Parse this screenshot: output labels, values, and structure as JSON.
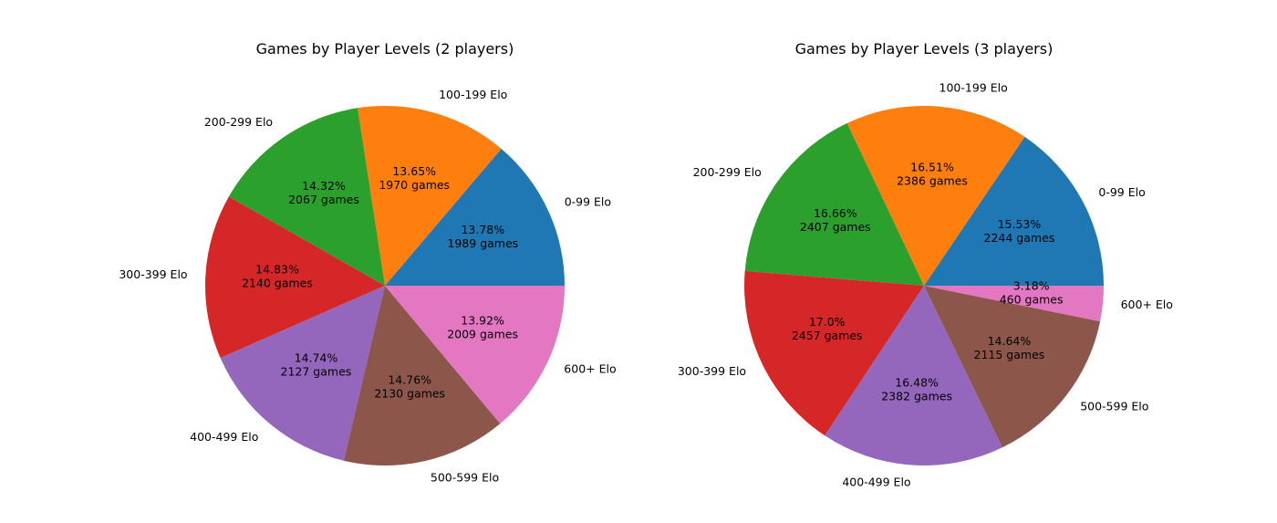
{
  "chart_data": [
    {
      "type": "pie",
      "title": "Games by Player Levels (2 players)",
      "start_angle": 0,
      "direction": "counterclockwise",
      "slices": [
        {
          "label": "0-99 Elo",
          "pct": "13.78%",
          "games": "1989 games",
          "value": 1989,
          "color": "#1f77b4"
        },
        {
          "label": "100-199 Elo",
          "pct": "13.65%",
          "games": "1970 games",
          "value": 1970,
          "color": "#ff7f0e"
        },
        {
          "label": "200-299 Elo",
          "pct": "14.32%",
          "games": "2067 games",
          "value": 2067,
          "color": "#2ca02c"
        },
        {
          "label": "300-399 Elo",
          "pct": "14.83%",
          "games": "2140 games",
          "value": 2140,
          "color": "#d62728"
        },
        {
          "label": "400-499 Elo",
          "pct": "14.74%",
          "games": "2127 games",
          "value": 2127,
          "color": "#9467bd"
        },
        {
          "label": "500-599 Elo",
          "pct": "14.76%",
          "games": "2130 games",
          "value": 2130,
          "color": "#8c564b"
        },
        {
          "label": "600+ Elo",
          "pct": "13.92%",
          "games": "2009 games",
          "value": 2009,
          "color": "#e377c2"
        }
      ]
    },
    {
      "type": "pie",
      "title": "Games by Player Levels (3 players)",
      "start_angle": 0,
      "direction": "counterclockwise",
      "slices": [
        {
          "label": "0-99 Elo",
          "pct": "15.53%",
          "games": "2244 games",
          "value": 2244,
          "color": "#1f77b4"
        },
        {
          "label": "100-199 Elo",
          "pct": "16.51%",
          "games": "2386 games",
          "value": 2386,
          "color": "#ff7f0e"
        },
        {
          "label": "200-299 Elo",
          "pct": "16.66%",
          "games": "2407 games",
          "value": 2407,
          "color": "#2ca02c"
        },
        {
          "label": "300-399 Elo",
          "pct": "17.0%",
          "games": "2457 games",
          "value": 2457,
          "color": "#d62728"
        },
        {
          "label": "400-499 Elo",
          "pct": "16.48%",
          "games": "2382 games",
          "value": 2382,
          "color": "#9467bd"
        },
        {
          "label": "500-599 Elo",
          "pct": "14.64%",
          "games": "2115 games",
          "value": 2115,
          "color": "#8c564b"
        },
        {
          "label": "600+ Elo",
          "pct": "3.18%",
          "games": "460 games",
          "value": 460,
          "color": "#e377c2"
        }
      ]
    }
  ]
}
